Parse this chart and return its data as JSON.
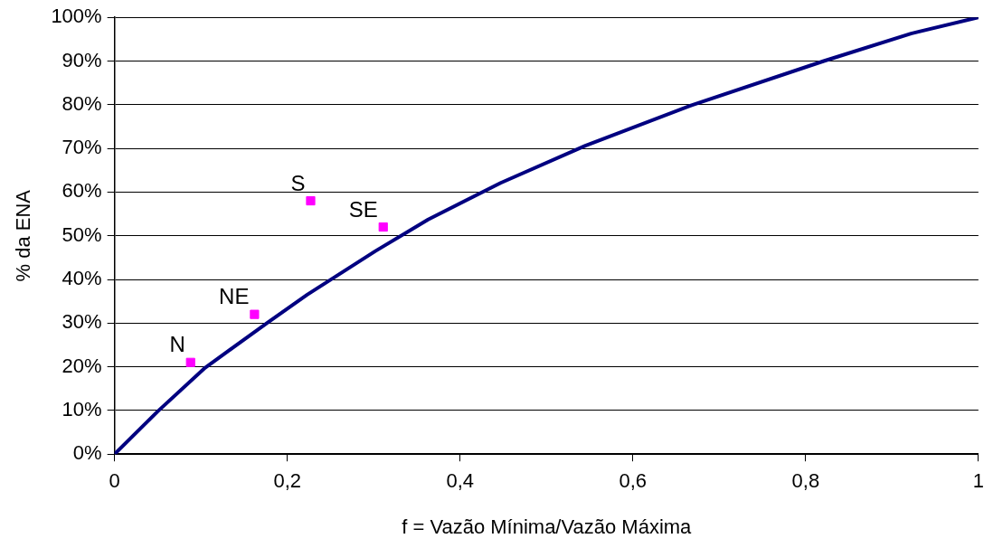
{
  "chart_data": {
    "type": "scatter",
    "xlabel": "f = Vazão Mínima/Vazão Máxima",
    "ylabel": "% da ENA",
    "xlim": [
      0,
      1
    ],
    "ylim": [
      0,
      100
    ],
    "xticks": [
      0,
      {
        "value": 0.2,
        "label": "0,2"
      },
      {
        "value": 0.4,
        "label": "0,4"
      },
      {
        "value": 0.6,
        "label": "0,6"
      },
      {
        "value": 0.8,
        "label": "0,8"
      },
      1
    ],
    "yticks": [
      {
        "value": 0,
        "label": "0%"
      },
      {
        "value": 10,
        "label": "10%"
      },
      {
        "value": 20,
        "label": "20%"
      },
      {
        "value": 30,
        "label": "30%"
      },
      {
        "value": 40,
        "label": "40%"
      },
      {
        "value": 50,
        "label": "50%"
      },
      {
        "value": 60,
        "label": "60%"
      },
      {
        "value": 70,
        "label": "70%"
      },
      {
        "value": 80,
        "label": "80%"
      },
      {
        "value": 90,
        "label": "90%"
      },
      {
        "value": 100,
        "label": "100%"
      }
    ],
    "grid": "y",
    "legend": false,
    "marker": "square",
    "series": [
      {
        "type": "line",
        "color": "#000080",
        "marker": "none",
        "x": [
          0,
          0.05,
          0.105,
          0.177,
          0.223,
          0.302,
          0.363,
          0.447,
          0.545,
          0.668,
          0.821,
          0.922,
          1
        ],
        "values": [
          0,
          9.8,
          19.8,
          30.1,
          36.5,
          46.5,
          53.7,
          62.1,
          70.6,
          79.9,
          90,
          96.3,
          100
        ]
      },
      {
        "name": "N",
        "color": "#ff00ff",
        "x": [
          0.088
        ],
        "values": [
          21
        ]
      },
      {
        "name": "NE",
        "color": "#ff00ff",
        "x": [
          0.162
        ],
        "values": [
          32
        ]
      },
      {
        "name": "S",
        "color": "#ff00ff",
        "x": [
          0.227
        ],
        "values": [
          58
        ]
      },
      {
        "name": "SE",
        "color": "#ff00ff",
        "x": [
          0.311
        ],
        "values": [
          52
        ]
      }
    ]
  }
}
